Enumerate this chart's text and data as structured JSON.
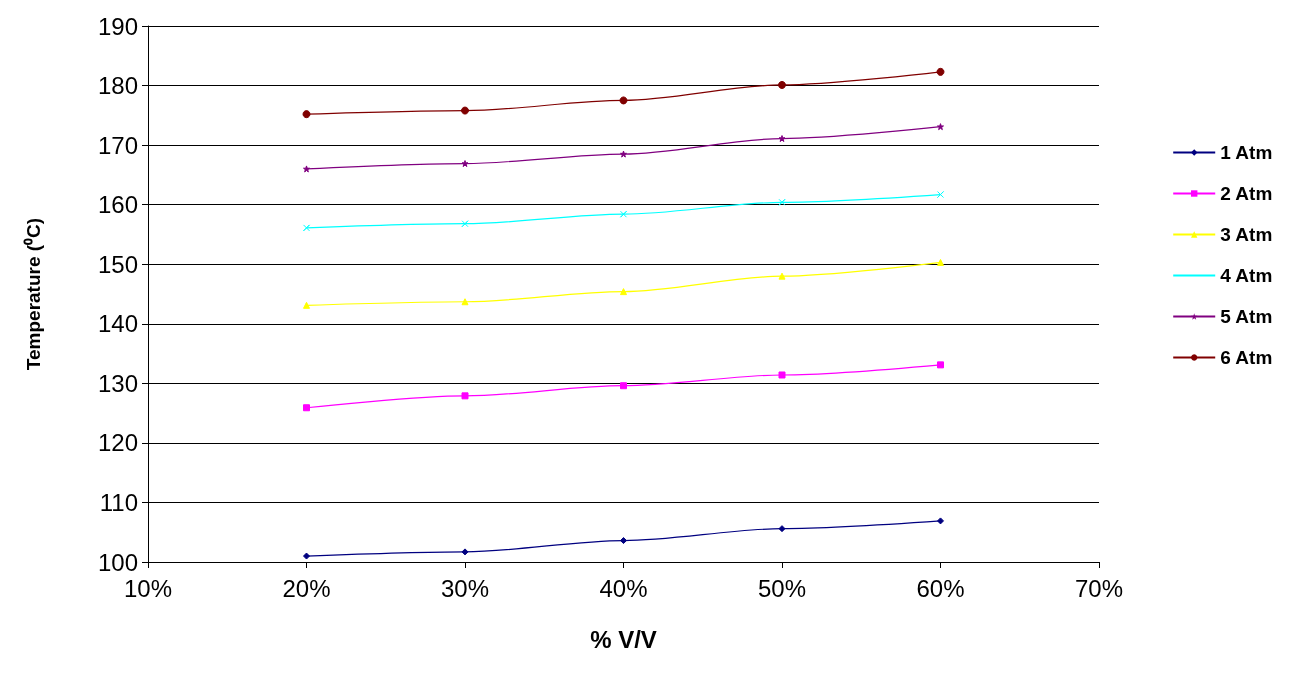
{
  "chart_data": {
    "type": "line",
    "xlabel": "% V/V",
    "ylabel": "Temperature (⁰C)",
    "x": [
      0.2,
      0.3,
      0.4,
      0.5,
      0.6
    ],
    "xlim": [
      0.1,
      0.7
    ],
    "xticks": [
      {
        "value": 0.1,
        "label": "10%"
      },
      {
        "value": 0.2,
        "label": "20%"
      },
      {
        "value": 0.3,
        "label": "30%"
      },
      {
        "value": 0.4,
        "label": "40%"
      },
      {
        "value": 0.5,
        "label": "50%"
      },
      {
        "value": 0.6,
        "label": "60%"
      },
      {
        "value": 0.7,
        "label": "70%"
      }
    ],
    "ylim": [
      100,
      190
    ],
    "yticks": [
      100,
      110,
      120,
      130,
      140,
      150,
      160,
      170,
      180,
      190
    ],
    "grid": "y",
    "legend": "right",
    "line_style": "solid",
    "series": [
      {
        "name": "1 Atm",
        "color": "#000080",
        "marker": "diamond",
        "values": [
          101,
          101.7,
          103.6,
          105.6,
          106.9
        ]
      },
      {
        "name": "2 Atm",
        "color": "#ff00ff",
        "marker": "square",
        "values": [
          125.9,
          127.9,
          129.6,
          131.4,
          133.1
        ]
      },
      {
        "name": "3 Atm",
        "color": "#ffff00",
        "marker": "triangle",
        "values": [
          143.1,
          143.7,
          145.4,
          148,
          150.3
        ]
      },
      {
        "name": "4 Atm",
        "color": "#00ffff",
        "marker": "cross",
        "values": [
          156.1,
          156.8,
          158.4,
          160.4,
          161.7
        ]
      },
      {
        "name": "5 Atm",
        "color": "#800080",
        "marker": "star",
        "values": [
          166,
          166.9,
          168.5,
          171.1,
          173.1
        ]
      },
      {
        "name": "6 Atm",
        "color": "#800000",
        "marker": "circle",
        "values": [
          175.2,
          175.8,
          177.5,
          180.1,
          182.3
        ]
      }
    ]
  }
}
